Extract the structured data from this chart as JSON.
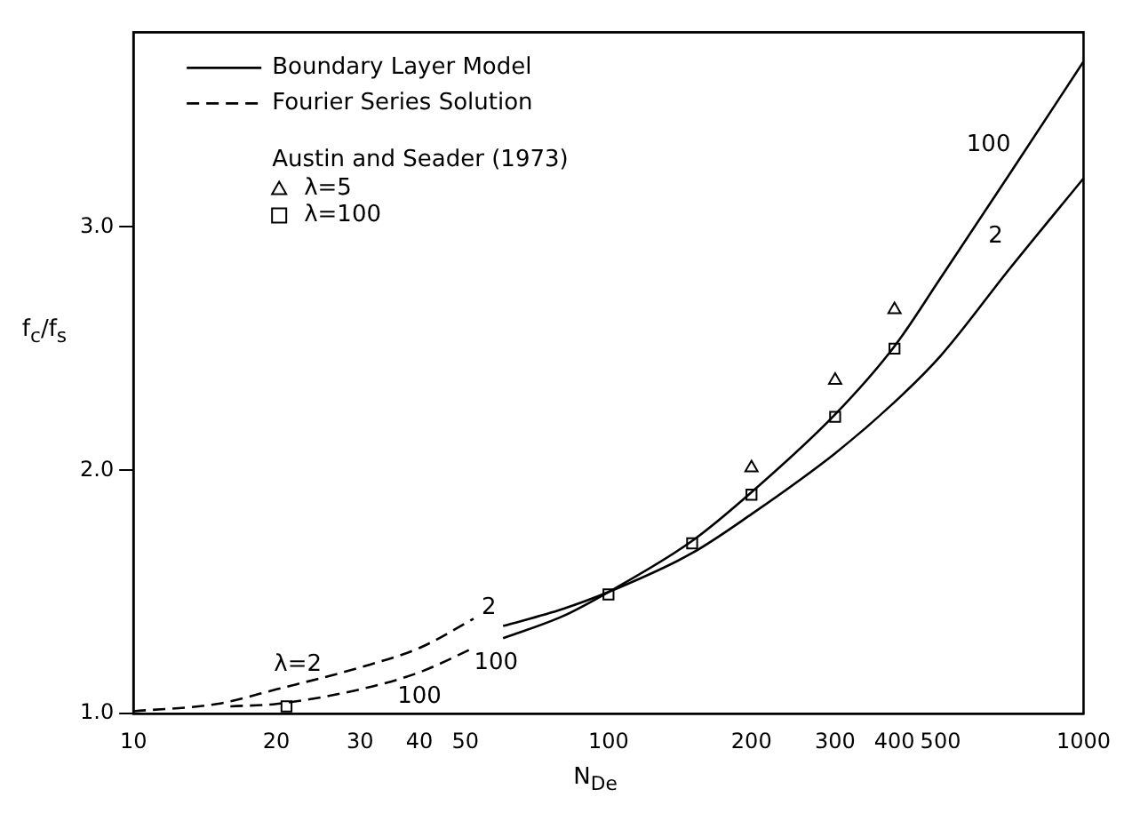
{
  "chart_data": {
    "type": "line",
    "xlabel": "N$_{De}$",
    "ylabel": "f$_{c}$/f$_{s}$",
    "log": "x",
    "xlim": [
      10,
      1000
    ],
    "ylim": [
      1,
      3.8
    ],
    "xticks": [
      10,
      20,
      30,
      40,
      50,
      100,
      200,
      300,
      400,
      500,
      1000
    ],
    "yticks": [
      {
        "value": 1,
        "label": "1.0"
      },
      {
        "value": 2,
        "label": "2.0"
      },
      {
        "value": 3,
        "label": "3.0"
      }
    ],
    "grid": false,
    "legend": "top left",
    "legend_title": "Austin and Seader (1973)",
    "series": [
      {
        "name": "Boundary Layer Model",
        "color": "#000000",
        "line_style": "solid",
        "marker": "none",
        "x": [
          60,
          80,
          100,
          150,
          200,
          300,
          400,
          500,
          700,
          1000
        ],
        "values": [
          1.31,
          1.4,
          1.5,
          1.71,
          1.91,
          2.23,
          2.51,
          2.79,
          3.22,
          3.68
        ]
      },
      {
        "color": "#000000",
        "line_style": "solid",
        "marker": "none",
        "x": [
          60,
          80,
          100,
          150,
          200,
          300,
          400,
          500,
          700,
          1000
        ],
        "values": [
          1.36,
          1.43,
          1.5,
          1.66,
          1.82,
          2.07,
          2.28,
          2.47,
          2.83,
          3.2
        ]
      },
      {
        "name": "Fourier Series Solution",
        "color": "#000000",
        "line_style": "dashed",
        "marker": "none",
        "x": [
          10,
          15,
          20,
          30,
          40,
          52
        ],
        "values": [
          1.01,
          1.04,
          1.1,
          1.19,
          1.27,
          1.39
        ]
      },
      {
        "color": "#000000",
        "line_style": "dashed",
        "marker": "none",
        "x": [
          16,
          20,
          30,
          40,
          52
        ],
        "values": [
          1.03,
          1.04,
          1.1,
          1.17,
          1.27
        ]
      },
      {
        "name": "λ=5",
        "type": "scatter",
        "color": "#000000",
        "marker": "triangle",
        "x": [
          200,
          300,
          400
        ],
        "values": [
          2.01,
          2.37,
          2.66
        ]
      },
      {
        "name": "λ=100",
        "type": "scatter",
        "color": "#000000",
        "marker": "square",
        "x": [
          21,
          100,
          150,
          200,
          300,
          400
        ],
        "values": [
          1.03,
          1.49,
          1.7,
          1.9,
          2.22,
          2.5
        ]
      }
    ],
    "annotations": [
      "λ=2",
      "100",
      "2",
      "100",
      "100",
      "2"
    ]
  }
}
